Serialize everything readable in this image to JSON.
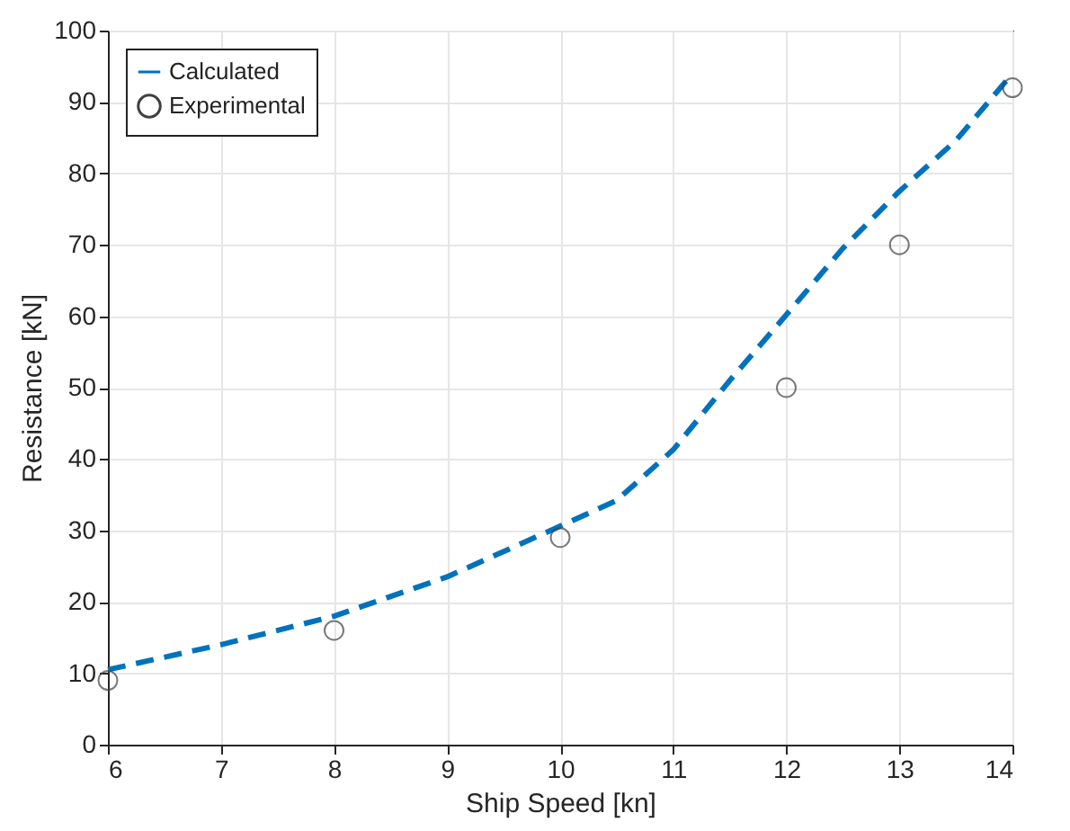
{
  "chart_data": {
    "type": "line",
    "xlabel": "Ship Speed [kn]",
    "ylabel": "Resistance [kN]",
    "xlim": [
      6,
      14
    ],
    "xticks": [
      6,
      7,
      8,
      9,
      10,
      11,
      12,
      13,
      14
    ],
    "ylim": [
      0,
      100
    ],
    "yticks": [
      0,
      10,
      20,
      30,
      40,
      50,
      60,
      70,
      80,
      90,
      100
    ],
    "grid": true,
    "legend": "top left",
    "series": [
      {
        "name": "Calculated",
        "type": "line",
        "line_style": "dashed",
        "color": "#0072bd",
        "x": [
          6,
          7,
          8,
          9,
          10,
          10.5,
          11,
          11.5,
          12,
          12.5,
          13,
          13.5,
          14
        ],
        "values": [
          10.5,
          14,
          18,
          23.5,
          30.6,
          34.2,
          41.3,
          51,
          60.2,
          69.5,
          77.5,
          84.6,
          94
        ]
      },
      {
        "name": "Experimental",
        "type": "scatter",
        "marker": "circle",
        "color": "#404040",
        "x": [
          6,
          8,
          10,
          12,
          13,
          14
        ],
        "values": [
          9,
          16,
          29,
          50,
          70,
          92
        ]
      }
    ]
  }
}
